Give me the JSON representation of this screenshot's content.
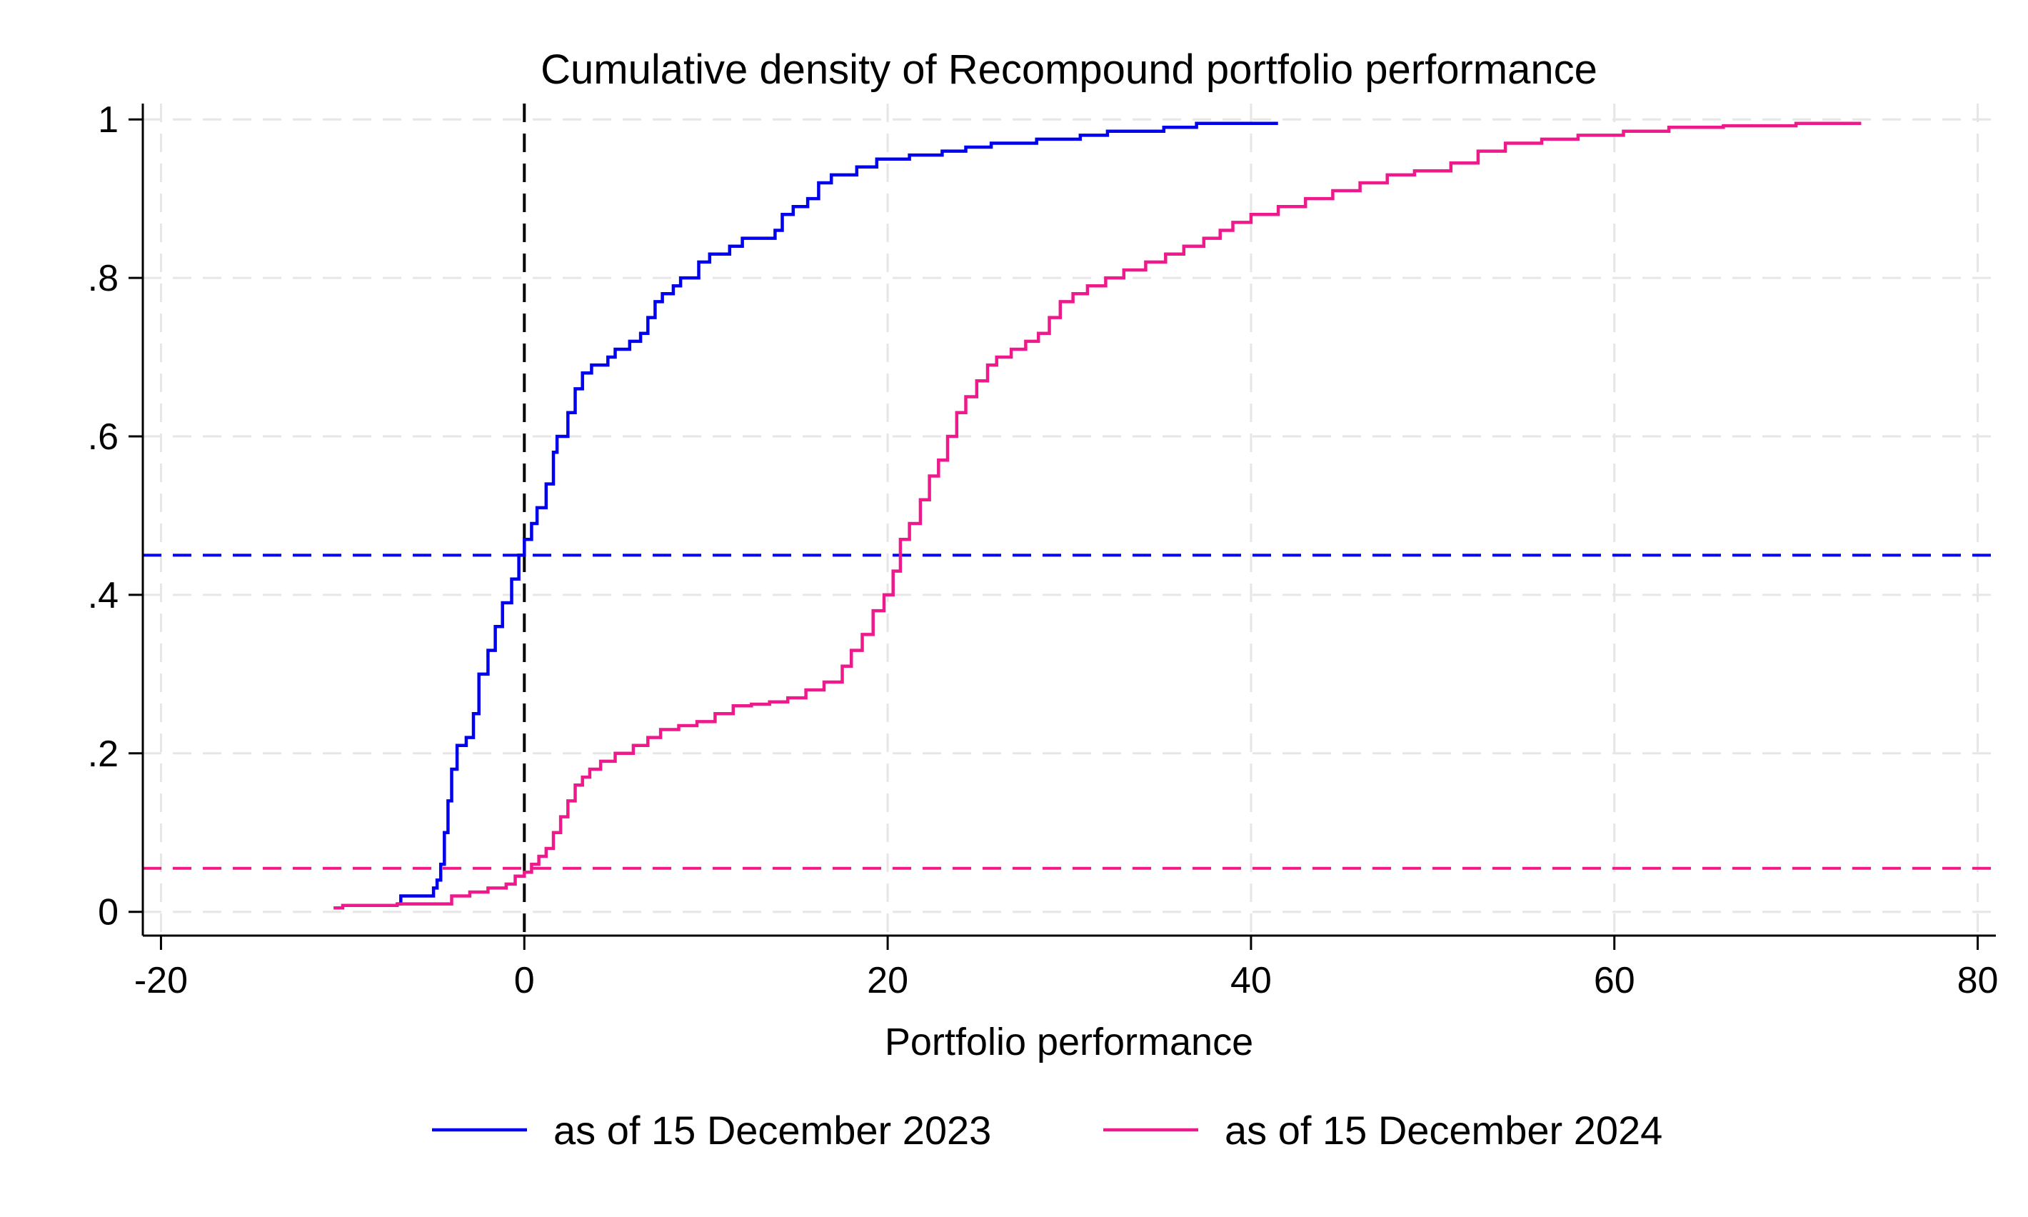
{
  "chart_data": {
    "type": "line",
    "title": "Cumulative density of Recompound portfolio performance",
    "xlabel": "Portfolio performance",
    "ylabel": "",
    "xlim": [
      -21,
      81
    ],
    "ylim": [
      -0.03,
      1.02
    ],
    "grid": true,
    "legend_position": "bottom",
    "x_ticks": [
      -20,
      0,
      20,
      40,
      60,
      80
    ],
    "x_tick_labels": [
      "-20",
      "0",
      "20",
      "40",
      "60",
      "80"
    ],
    "y_ticks": [
      0,
      0.2,
      0.4,
      0.6,
      0.8,
      1
    ],
    "y_tick_labels": [
      "0",
      ".2",
      ".4",
      ".6",
      ".8",
      "1"
    ],
    "series": [
      {
        "name": "as of 15 December 2023",
        "color": "#0000ee",
        "points": [
          [
            -7,
            0.01
          ],
          [
            -6.8,
            0.02
          ],
          [
            -5.3,
            0.02
          ],
          [
            -5,
            0.03
          ],
          [
            -4.8,
            0.04
          ],
          [
            -4.6,
            0.06
          ],
          [
            -4.4,
            0.1
          ],
          [
            -4.2,
            0.14
          ],
          [
            -4,
            0.18
          ],
          [
            -3.7,
            0.21
          ],
          [
            -3.2,
            0.22
          ],
          [
            -2.8,
            0.25
          ],
          [
            -2.5,
            0.3
          ],
          [
            -2,
            0.33
          ],
          [
            -1.6,
            0.36
          ],
          [
            -1.2,
            0.39
          ],
          [
            -0.7,
            0.42
          ],
          [
            -0.3,
            0.45
          ],
          [
            0,
            0.47
          ],
          [
            0.4,
            0.49
          ],
          [
            0.7,
            0.51
          ],
          [
            1.2,
            0.54
          ],
          [
            1.6,
            0.58
          ],
          [
            1.8,
            0.6
          ],
          [
            2.4,
            0.63
          ],
          [
            2.8,
            0.66
          ],
          [
            3.2,
            0.68
          ],
          [
            3.7,
            0.69
          ],
          [
            4.6,
            0.7
          ],
          [
            5,
            0.71
          ],
          [
            5.8,
            0.72
          ],
          [
            6.4,
            0.73
          ],
          [
            6.8,
            0.75
          ],
          [
            7.2,
            0.77
          ],
          [
            7.6,
            0.78
          ],
          [
            8.2,
            0.79
          ],
          [
            8.6,
            0.8
          ],
          [
            9.6,
            0.82
          ],
          [
            10.2,
            0.83
          ],
          [
            11.3,
            0.84
          ],
          [
            12,
            0.85
          ],
          [
            13.8,
            0.86
          ],
          [
            14.2,
            0.88
          ],
          [
            14.8,
            0.89
          ],
          [
            15.6,
            0.9
          ],
          [
            16.2,
            0.92
          ],
          [
            16.9,
            0.93
          ],
          [
            18.3,
            0.94
          ],
          [
            19.4,
            0.95
          ],
          [
            21.2,
            0.955
          ],
          [
            23,
            0.96
          ],
          [
            24.3,
            0.965
          ],
          [
            25.7,
            0.97
          ],
          [
            28.2,
            0.975
          ],
          [
            30.6,
            0.98
          ],
          [
            32.1,
            0.985
          ],
          [
            35.2,
            0.99
          ],
          [
            37,
            0.995
          ],
          [
            41.4,
            0.997
          ]
        ]
      },
      {
        "name": "as of 15 December 2024",
        "color": "#ee1a8c",
        "points": [
          [
            -10.5,
            0.005
          ],
          [
            -10,
            0.008
          ],
          [
            -7,
            0.01
          ],
          [
            -4,
            0.02
          ],
          [
            -3,
            0.025
          ],
          [
            -2,
            0.03
          ],
          [
            -1,
            0.035
          ],
          [
            -0.5,
            0.045
          ],
          [
            0,
            0.05
          ],
          [
            0.4,
            0.06
          ],
          [
            0.8,
            0.07
          ],
          [
            1.2,
            0.08
          ],
          [
            1.6,
            0.1
          ],
          [
            2,
            0.12
          ],
          [
            2.4,
            0.14
          ],
          [
            2.8,
            0.16
          ],
          [
            3.2,
            0.17
          ],
          [
            3.6,
            0.18
          ],
          [
            4.2,
            0.19
          ],
          [
            5,
            0.2
          ],
          [
            6,
            0.21
          ],
          [
            6.8,
            0.22
          ],
          [
            7.5,
            0.23
          ],
          [
            8.5,
            0.235
          ],
          [
            9.5,
            0.24
          ],
          [
            10.5,
            0.25
          ],
          [
            11.5,
            0.26
          ],
          [
            12.5,
            0.262
          ],
          [
            13.5,
            0.265
          ],
          [
            14.5,
            0.27
          ],
          [
            15.5,
            0.28
          ],
          [
            16.5,
            0.29
          ],
          [
            17.5,
            0.31
          ],
          [
            18,
            0.33
          ],
          [
            18.6,
            0.35
          ],
          [
            19.2,
            0.38
          ],
          [
            19.8,
            0.4
          ],
          [
            20.3,
            0.43
          ],
          [
            20.7,
            0.47
          ],
          [
            21.2,
            0.49
          ],
          [
            21.8,
            0.52
          ],
          [
            22.3,
            0.55
          ],
          [
            22.8,
            0.57
          ],
          [
            23.3,
            0.6
          ],
          [
            23.8,
            0.63
          ],
          [
            24.3,
            0.65
          ],
          [
            24.9,
            0.67
          ],
          [
            25.5,
            0.69
          ],
          [
            26,
            0.7
          ],
          [
            26.8,
            0.71
          ],
          [
            27.6,
            0.72
          ],
          [
            28.3,
            0.73
          ],
          [
            28.9,
            0.75
          ],
          [
            29.5,
            0.77
          ],
          [
            30.2,
            0.78
          ],
          [
            31,
            0.79
          ],
          [
            32,
            0.8
          ],
          [
            33,
            0.81
          ],
          [
            34.2,
            0.82
          ],
          [
            35.3,
            0.83
          ],
          [
            36.3,
            0.84
          ],
          [
            37.4,
            0.85
          ],
          [
            38.3,
            0.86
          ],
          [
            39,
            0.87
          ],
          [
            40,
            0.88
          ],
          [
            41.5,
            0.89
          ],
          [
            43,
            0.9
          ],
          [
            44.5,
            0.91
          ],
          [
            46,
            0.92
          ],
          [
            47.5,
            0.93
          ],
          [
            49,
            0.935
          ],
          [
            51,
            0.945
          ],
          [
            52.5,
            0.96
          ],
          [
            54,
            0.97
          ],
          [
            56,
            0.975
          ],
          [
            58,
            0.98
          ],
          [
            60.5,
            0.985
          ],
          [
            63,
            0.99
          ],
          [
            66,
            0.992
          ],
          [
            70,
            0.995
          ],
          [
            73.5,
            0.997
          ]
        ]
      }
    ],
    "reference_lines": [
      {
        "orientation": "vertical",
        "value": 0,
        "color": "#000000"
      },
      {
        "orientation": "horizontal",
        "value": 0.45,
        "color": "#0000ee"
      },
      {
        "orientation": "horizontal",
        "value": 0.055,
        "color": "#ee1a8c"
      }
    ]
  }
}
